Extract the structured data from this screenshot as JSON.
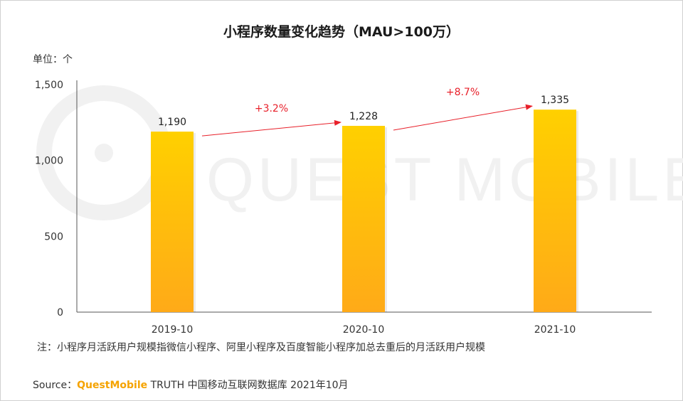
{
  "page": {
    "title": "小程序数量变化趋势（MAU>100万）",
    "unit_label": "单位：个",
    "note": "注：小程序月活跃用户规模指微信小程序、阿里小程序及百度智能小程序加总去重后的月活跃用户规模",
    "source_prefix": "Source：",
    "source_brand": "QuestMobile",
    "source_rest": " TRUTH 中国移动互联网数据库 2021年10月",
    "watermark_text": "QUEST MOBILE"
  },
  "colors": {
    "bar_top": "#ffd000",
    "bar_bottom": "#ffaa18",
    "arrow": "#e8202a",
    "growth_text": "#e8202a",
    "axis": "#555555",
    "watermark": "#f1f1f1"
  },
  "chart_data": {
    "type": "bar",
    "title": "小程序数量变化趋势（MAU>100万）",
    "xlabel": "",
    "ylabel": "单位：个",
    "categories": [
      "2019-10",
      "2020-10",
      "2021-10"
    ],
    "values": [
      1190,
      1228,
      1335
    ],
    "value_labels": [
      "1,190",
      "1,228",
      "1,335"
    ],
    "ylim": [
      0,
      1500
    ],
    "yticks": [
      0,
      500,
      1000,
      1500
    ],
    "ytick_labels": [
      "0",
      "500",
      "1,000",
      "1,500"
    ],
    "grid": false,
    "annotations": [
      {
        "from": 0,
        "to": 1,
        "text": "+3.2%"
      },
      {
        "from": 1,
        "to": 2,
        "text": "+8.7%"
      }
    ]
  }
}
